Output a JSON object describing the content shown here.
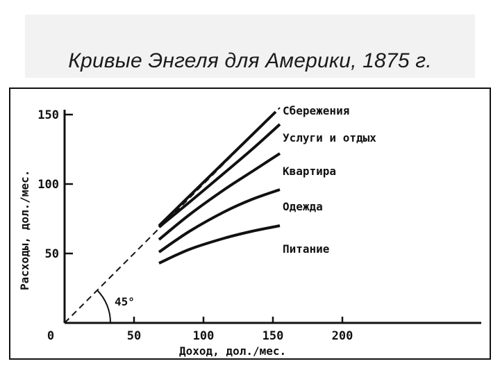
{
  "slide": {
    "title": "Кривые Энгеля для Америки, 1875 г."
  },
  "chart_data": {
    "type": "line",
    "xlabel": "Доход, дол./мес.",
    "ylabel": "Расходы, дол./мес.",
    "xlim": [
      0,
      300
    ],
    "ylim": [
      0,
      155
    ],
    "x_ticks": [
      "0",
      "50",
      "100",
      "150",
      "200"
    ],
    "x_tick_values": [
      0,
      50,
      100,
      150,
      200
    ],
    "y_ticks": [
      "50",
      "100",
      "150"
    ],
    "y_tick_values": [
      50,
      100,
      150
    ],
    "angle_label": "45°",
    "grid": false,
    "reference_line": {
      "x": [
        0,
        155
      ],
      "y": [
        0,
        155
      ],
      "style": "dashed"
    },
    "series": [
      {
        "name": "Сбережения",
        "x": [
          68,
          152
        ],
        "y": [
          70,
          152
        ]
      },
      {
        "name": "Услуги и отдых",
        "x": [
          68,
          90,
          115,
          135,
          155
        ],
        "y": [
          69,
          87,
          108,
          125,
          143
        ]
      },
      {
        "name": "Квартира",
        "x": [
          68,
          90,
          115,
          135,
          155
        ],
        "y": [
          60,
          78,
          96,
          109,
          122
        ]
      },
      {
        "name": "Одежда",
        "x": [
          68,
          90,
          115,
          135,
          155
        ],
        "y": [
          51,
          66,
          80,
          89,
          96
        ]
      },
      {
        "name": "Питание",
        "x": [
          68,
          90,
          115,
          135,
          155
        ],
        "y": [
          43,
          53,
          61,
          66,
          70
        ]
      }
    ]
  }
}
